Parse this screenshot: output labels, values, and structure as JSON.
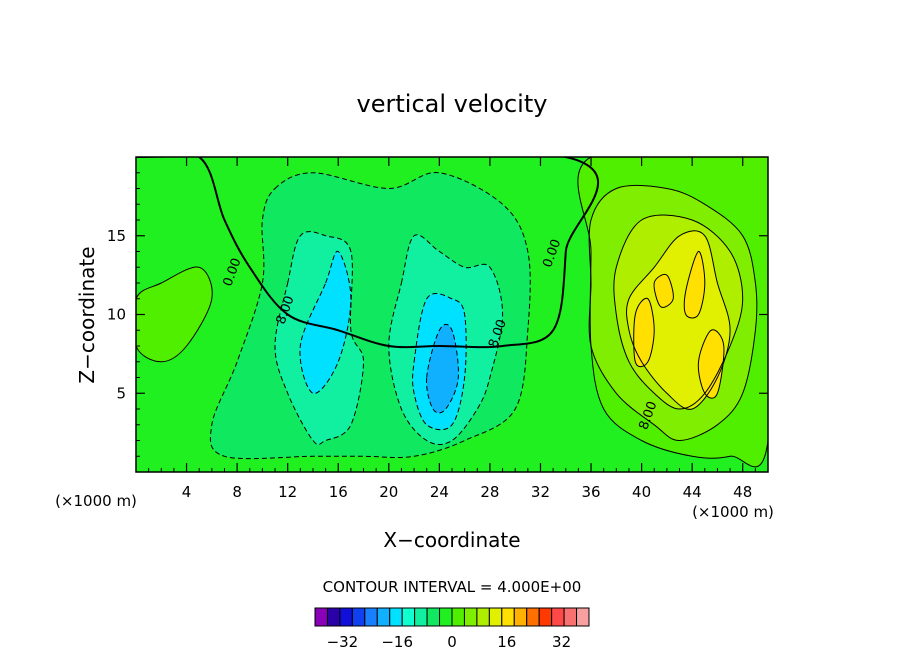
{
  "chart_data": {
    "type": "contour",
    "title": "vertical velocity",
    "xlabel": "X−coordinate",
    "ylabel": "Z−coordinate",
    "x_units_left": "(×1000 m)",
    "x_units_right": "(×1000 m)",
    "xlim": [
      0,
      50
    ],
    "ylim": [
      0,
      20
    ],
    "x_ticks": [
      4,
      8,
      12,
      16,
      20,
      24,
      28,
      32,
      36,
      40,
      44,
      48
    ],
    "y_ticks": [
      5,
      10,
      15
    ],
    "contour_interval_text": "CONTOUR INTERVAL = 4.000E+00",
    "contour_labels": [
      {
        "text": "0.00",
        "x": 7.9,
        "z": 12.6
      },
      {
        "text": "0.00",
        "x": 33.2,
        "z": 13.8
      },
      {
        "text": "8.00",
        "x": 12.1,
        "z": 10.2
      },
      {
        "text": "8.00",
        "x": 28.9,
        "z": 8.7
      },
      {
        "text": "8.00",
        "x": 40.8,
        "z": 3.5
      }
    ],
    "colorbar": {
      "colors": [
        "#8a00b8",
        "#2a00a8",
        "#1010d8",
        "#1040f0",
        "#1880ff",
        "#10b0ff",
        "#00e0ff",
        "#10ffd0",
        "#10f0a0",
        "#10e860",
        "#20f020",
        "#50ef00",
        "#80ee00",
        "#b0ee00",
        "#e0f000",
        "#ffe000",
        "#ffb000",
        "#ff7000",
        "#ff3a00",
        "#ff4848",
        "#f87070",
        "#f8a0a0"
      ],
      "tick_values": [
        -32,
        -16,
        0,
        16,
        32
      ],
      "tick_labels": [
        "−32",
        "−16",
        "0",
        "16",
        "32"
      ],
      "value_min": -40,
      "value_max": 40
    },
    "field_regions": [
      {
        "level": 0,
        "color": "#20f020",
        "points": [
          [
            0,
            20
          ],
          [
            5,
            20
          ],
          [
            7,
            16
          ],
          [
            9,
            13
          ],
          [
            12,
            10
          ],
          [
            16,
            9
          ],
          [
            20,
            8
          ],
          [
            24,
            8
          ],
          [
            29,
            8
          ],
          [
            33,
            9
          ],
          [
            34,
            14
          ],
          [
            34,
            20
          ]
        ]
      },
      {
        "level": -4,
        "color": "#10e860",
        "points": [
          [
            11,
            18
          ],
          [
            14,
            19
          ],
          [
            20,
            18
          ],
          [
            24,
            19
          ],
          [
            29,
            17
          ],
          [
            31,
            14
          ],
          [
            31,
            9
          ],
          [
            30,
            4
          ],
          [
            26,
            2
          ],
          [
            22,
            1
          ],
          [
            18,
            1
          ],
          [
            14,
            1
          ],
          [
            7,
            1
          ],
          [
            6,
            3
          ],
          [
            8,
            7
          ],
          [
            10,
            12
          ],
          [
            10,
            16
          ]
        ]
      },
      {
        "level": -8,
        "color": "#10f0a0",
        "points": [
          [
            12,
            12
          ],
          [
            13,
            15
          ],
          [
            15,
            15
          ],
          [
            17,
            14
          ],
          [
            17,
            9
          ],
          [
            18,
            7
          ],
          [
            17,
            3
          ],
          [
            15,
            2
          ],
          [
            14,
            2
          ],
          [
            12,
            5
          ],
          [
            11,
            8
          ]
        ]
      },
      {
        "level": -8,
        "color": "#10f0a0",
        "points": [
          [
            21,
            12
          ],
          [
            22,
            15
          ],
          [
            24,
            14
          ],
          [
            26,
            13
          ],
          [
            28,
            13
          ],
          [
            29,
            10
          ],
          [
            28,
            6
          ],
          [
            27,
            4
          ],
          [
            25,
            2
          ],
          [
            23,
            2
          ],
          [
            21,
            4
          ],
          [
            20,
            8
          ]
        ]
      },
      {
        "level": -12,
        "color": "#00e0ff",
        "points": [
          [
            15,
            12
          ],
          [
            16,
            14
          ],
          [
            17,
            11
          ],
          [
            16,
            7
          ],
          [
            14,
            5
          ],
          [
            13,
            8
          ]
        ]
      },
      {
        "level": -12,
        "color": "#00e0ff",
        "points": [
          [
            22,
            7
          ],
          [
            23,
            11
          ],
          [
            25,
            11
          ],
          [
            26,
            10
          ],
          [
            26,
            6
          ],
          [
            25,
            3
          ],
          [
            23,
            3
          ],
          [
            22,
            5
          ]
        ]
      },
      {
        "level": -16,
        "color": "#10b0ff",
        "points": [
          [
            23,
            6
          ],
          [
            24,
            9
          ],
          [
            25,
            9
          ],
          [
            25.5,
            6
          ],
          [
            24.5,
            4
          ],
          [
            23.5,
            4
          ]
        ]
      },
      {
        "level": 4,
        "color": "#50ef00",
        "points": [
          [
            0,
            11
          ],
          [
            2,
            12
          ],
          [
            5,
            13
          ],
          [
            6,
            11
          ],
          [
            4,
            8
          ],
          [
            2,
            7
          ],
          [
            0,
            8
          ]
        ]
      },
      {
        "level": 4,
        "color": "#50ef00",
        "points": [
          [
            36,
            20
          ],
          [
            50,
            20
          ],
          [
            50,
            2
          ],
          [
            47,
            1
          ],
          [
            44,
            1
          ],
          [
            40,
            2
          ],
          [
            37,
            4
          ],
          [
            36,
            8
          ],
          [
            36,
            14
          ]
        ]
      },
      {
        "level": 8,
        "color": "#80ee00",
        "points": [
          [
            36,
            16
          ],
          [
            38,
            18
          ],
          [
            42,
            18
          ],
          [
            45,
            17
          ],
          [
            48,
            15
          ],
          [
            49,
            12
          ],
          [
            49,
            9
          ],
          [
            48,
            5
          ],
          [
            46,
            3
          ],
          [
            43,
            2
          ],
          [
            41,
            3
          ],
          [
            38,
            5
          ],
          [
            36,
            8
          ],
          [
            36,
            12
          ]
        ]
      },
      {
        "level": 12,
        "color": "#b0ee00",
        "points": [
          [
            38,
            13
          ],
          [
            40,
            16
          ],
          [
            44,
            16
          ],
          [
            47,
            14
          ],
          [
            48,
            11
          ],
          [
            47,
            8
          ],
          [
            45,
            5
          ],
          [
            43,
            4
          ],
          [
            41,
            5
          ],
          [
            39,
            7
          ],
          [
            38,
            10
          ]
        ]
      },
      {
        "level": 16,
        "color": "#e0f000",
        "points": [
          [
            39,
            11
          ],
          [
            41,
            13
          ],
          [
            43,
            15
          ],
          [
            45,
            15
          ],
          [
            46,
            12
          ],
          [
            47,
            9
          ],
          [
            46,
            6
          ],
          [
            44,
            4
          ],
          [
            42,
            5
          ],
          [
            40,
            7
          ],
          [
            39,
            9
          ]
        ]
      },
      {
        "level": 20,
        "color": "#ffe000",
        "points": [
          [
            39.5,
            10
          ],
          [
            40.5,
            11
          ],
          [
            41,
            9
          ],
          [
            40.5,
            7
          ],
          [
            39.5,
            7
          ]
        ]
      },
      {
        "level": 20,
        "color": "#ffe000",
        "points": [
          [
            43.5,
            11.5
          ],
          [
            44.5,
            14
          ],
          [
            45,
            12
          ],
          [
            44.5,
            10
          ],
          [
            43.5,
            10
          ]
        ]
      },
      {
        "level": 20,
        "color": "#ffe000",
        "points": [
          [
            44.5,
            7
          ],
          [
            45.5,
            9
          ],
          [
            46.5,
            8
          ],
          [
            46,
            5
          ],
          [
            45,
            5
          ]
        ]
      },
      {
        "level": 20,
        "color": "#ffe000",
        "points": [
          [
            41,
            12
          ],
          [
            42,
            12.5
          ],
          [
            42.5,
            11
          ],
          [
            41.5,
            10.5
          ]
        ]
      }
    ]
  }
}
